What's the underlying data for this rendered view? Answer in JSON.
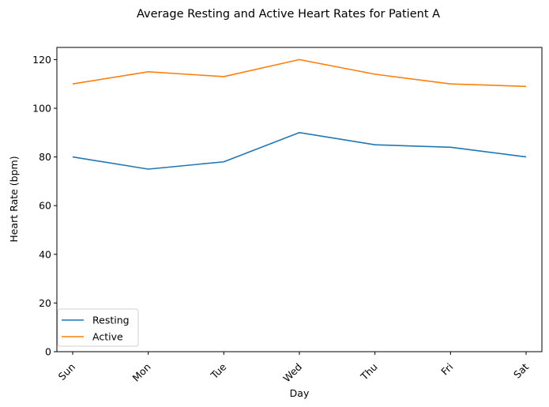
{
  "chart_data": {
    "type": "line",
    "title": "Average Resting and Active Heart Rates for Patient A",
    "xlabel": "Day",
    "ylabel": "Heart Rate (bpm)",
    "categories": [
      "Sun",
      "Mon",
      "Tue",
      "Wed",
      "Thu",
      "Fri",
      "Sat"
    ],
    "ylim": [
      0,
      125
    ],
    "yticks": [
      0,
      20,
      40,
      60,
      80,
      100,
      120
    ],
    "grid": false,
    "legend_position": "lower-left",
    "series": [
      {
        "name": "Resting",
        "color": "#1f77b4",
        "values": [
          80,
          75,
          78,
          90,
          85,
          84,
          80
        ]
      },
      {
        "name": "Active",
        "color": "#ff7f0e",
        "values": [
          110,
          115,
          113,
          120,
          114,
          110,
          109
        ]
      }
    ]
  }
}
